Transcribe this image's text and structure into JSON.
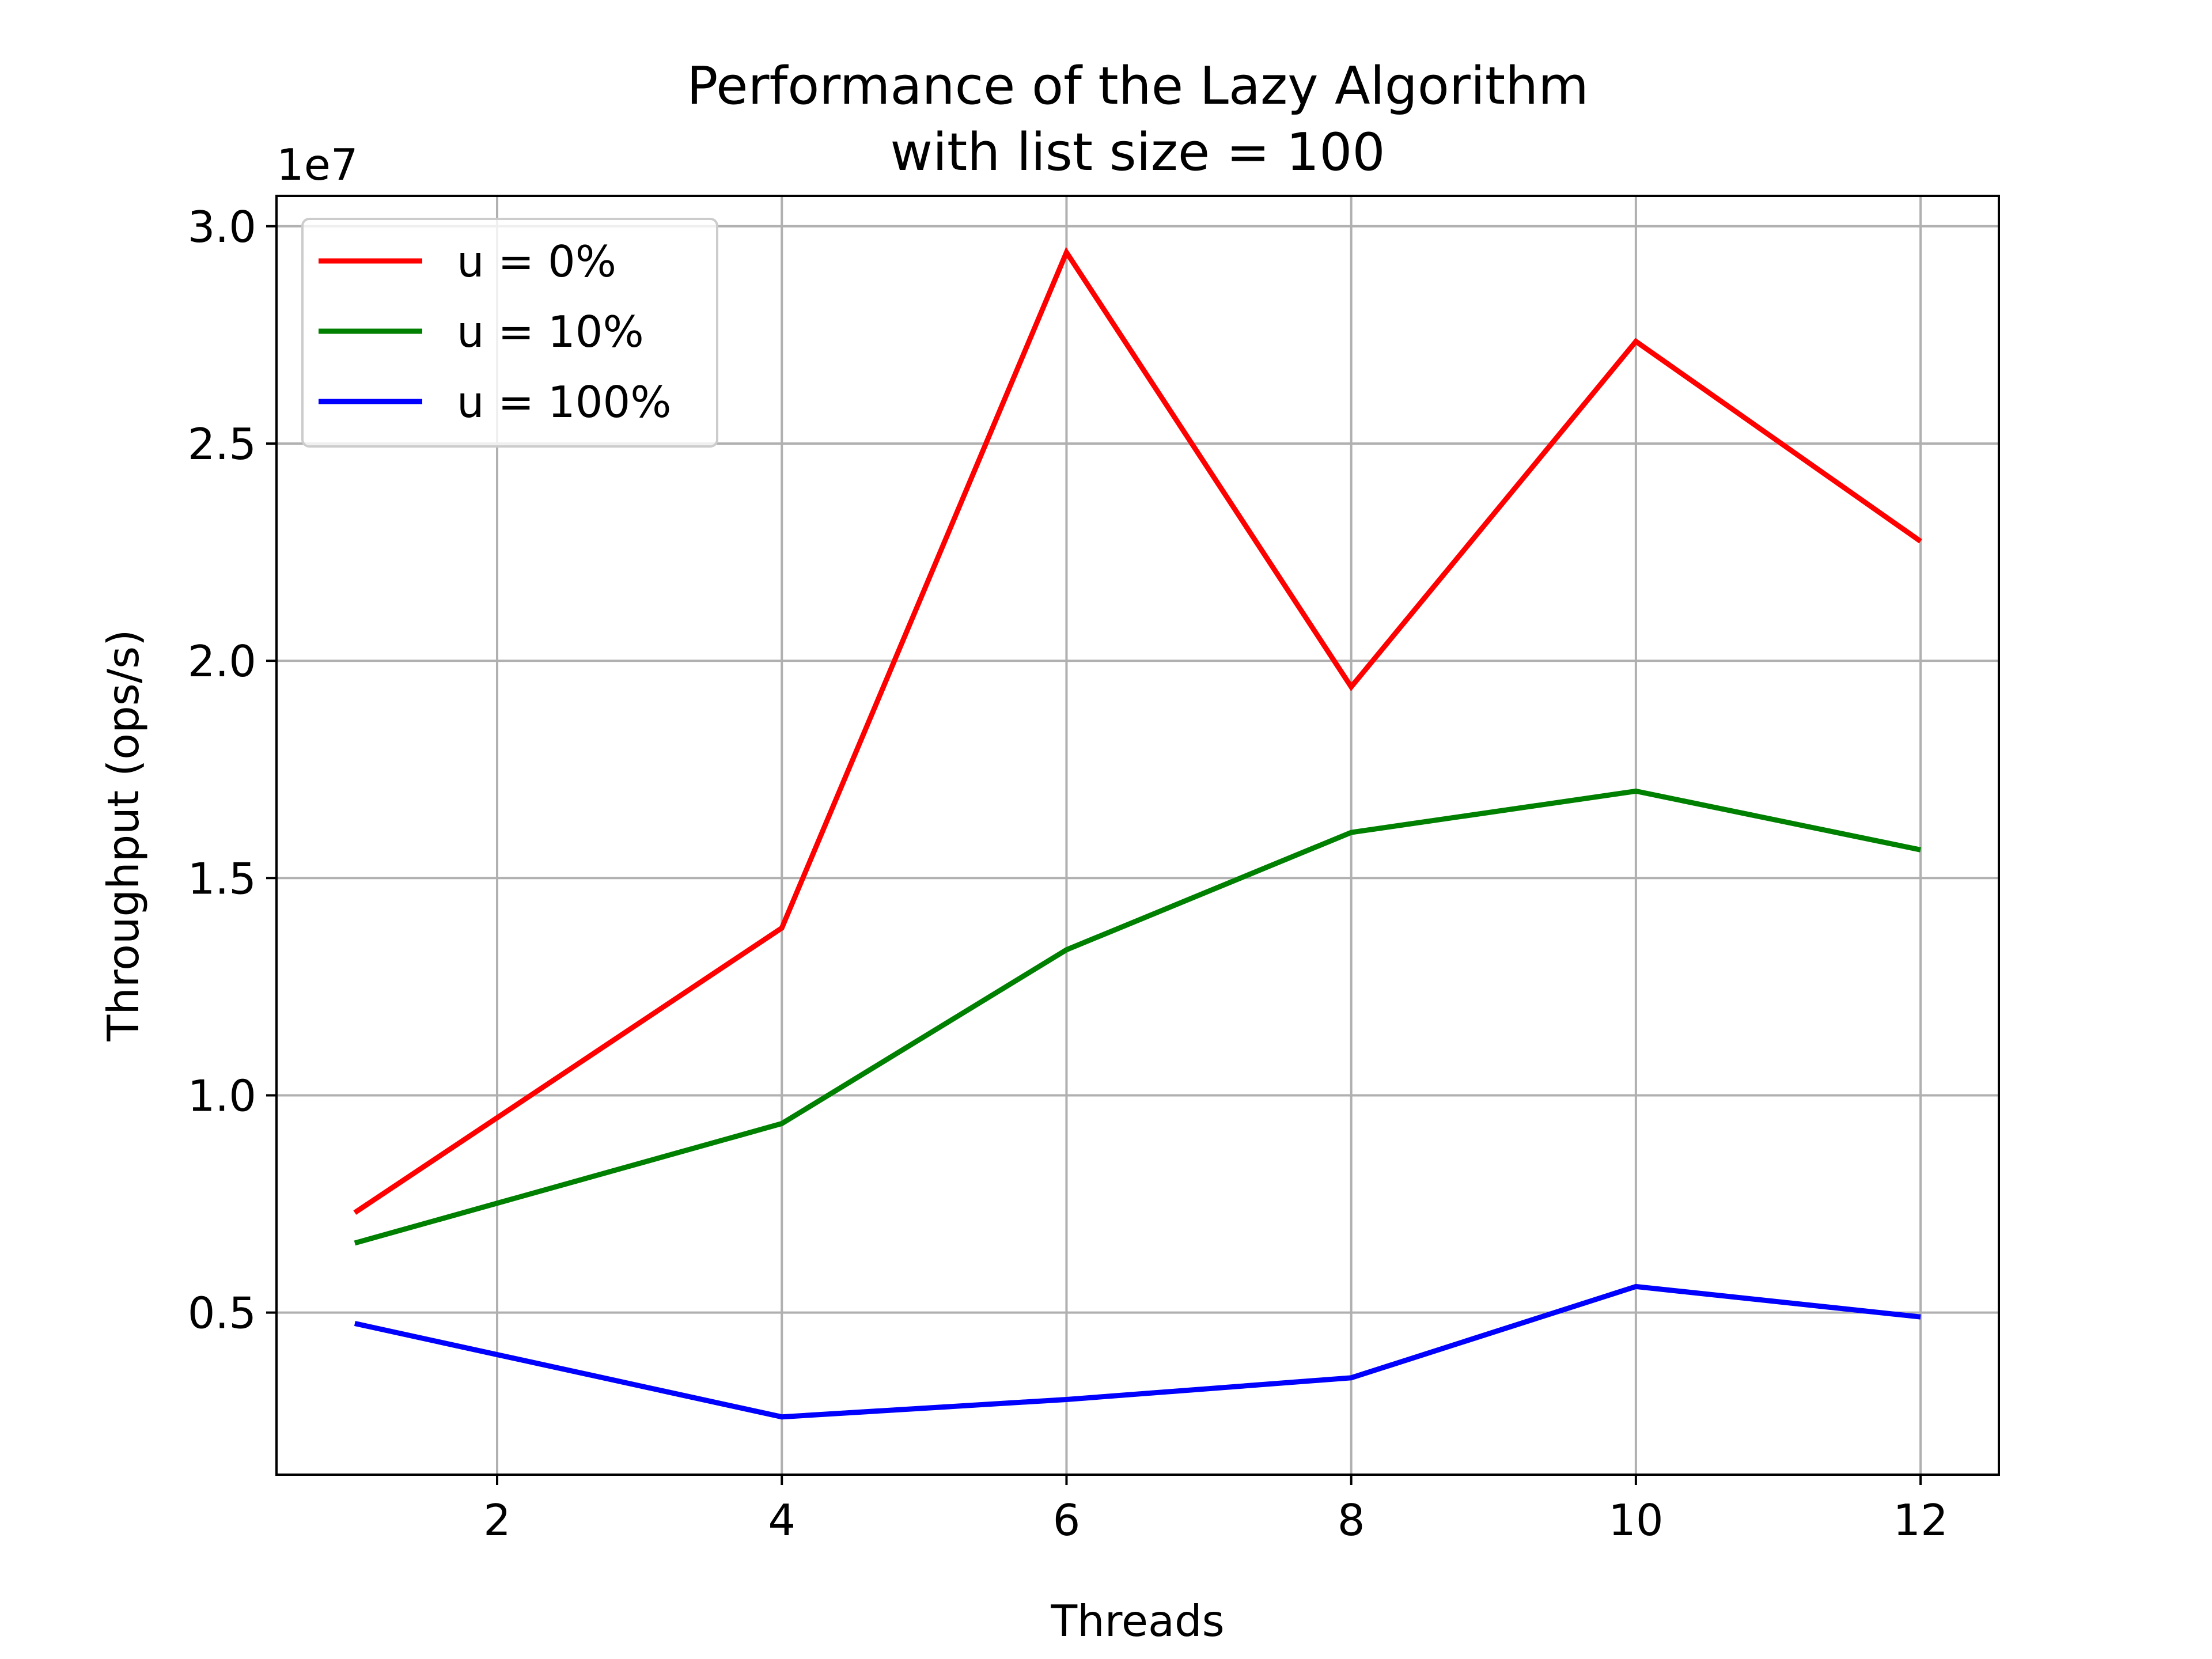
{
  "chart_data": {
    "type": "line",
    "title": "Performance of the Lazy Algorithm\nwith list size = 100",
    "title_lines": [
      "Performance of the Lazy Algorithm",
      "with list size = 100"
    ],
    "xlabel": "Threads",
    "ylabel": "Throughput (ops/s)",
    "y_offset_label": "1e7",
    "x": [
      1,
      4,
      6,
      8,
      10,
      12
    ],
    "xlim": [
      0.45,
      12.55
    ],
    "ylim": [
      1270000,
      30700000
    ],
    "x_ticks": [
      2,
      4,
      6,
      8,
      10,
      12
    ],
    "x_tick_labels": [
      "2",
      "4",
      "6",
      "8",
      "10",
      "12"
    ],
    "y_ticks": [
      5000000,
      10000000,
      15000000,
      20000000,
      25000000,
      30000000
    ],
    "y_tick_labels": [
      "0.5",
      "1.0",
      "1.5",
      "2.0",
      "2.5",
      "3.0"
    ],
    "grid": true,
    "legend_position": "upper-left",
    "series": [
      {
        "name": "u = 0%",
        "color": "#ff0000",
        "values": [
          7300000,
          13850000,
          29400000,
          19400000,
          27350000,
          22750000
        ]
      },
      {
        "name": "u = 10%",
        "color": "#008000",
        "values": [
          6600000,
          9350000,
          13350000,
          16050000,
          17000000,
          15650000
        ]
      },
      {
        "name": "u = 100%",
        "color": "#0000ff",
        "values": [
          4750000,
          2600000,
          3000000,
          3500000,
          5600000,
          4900000
        ]
      }
    ]
  }
}
